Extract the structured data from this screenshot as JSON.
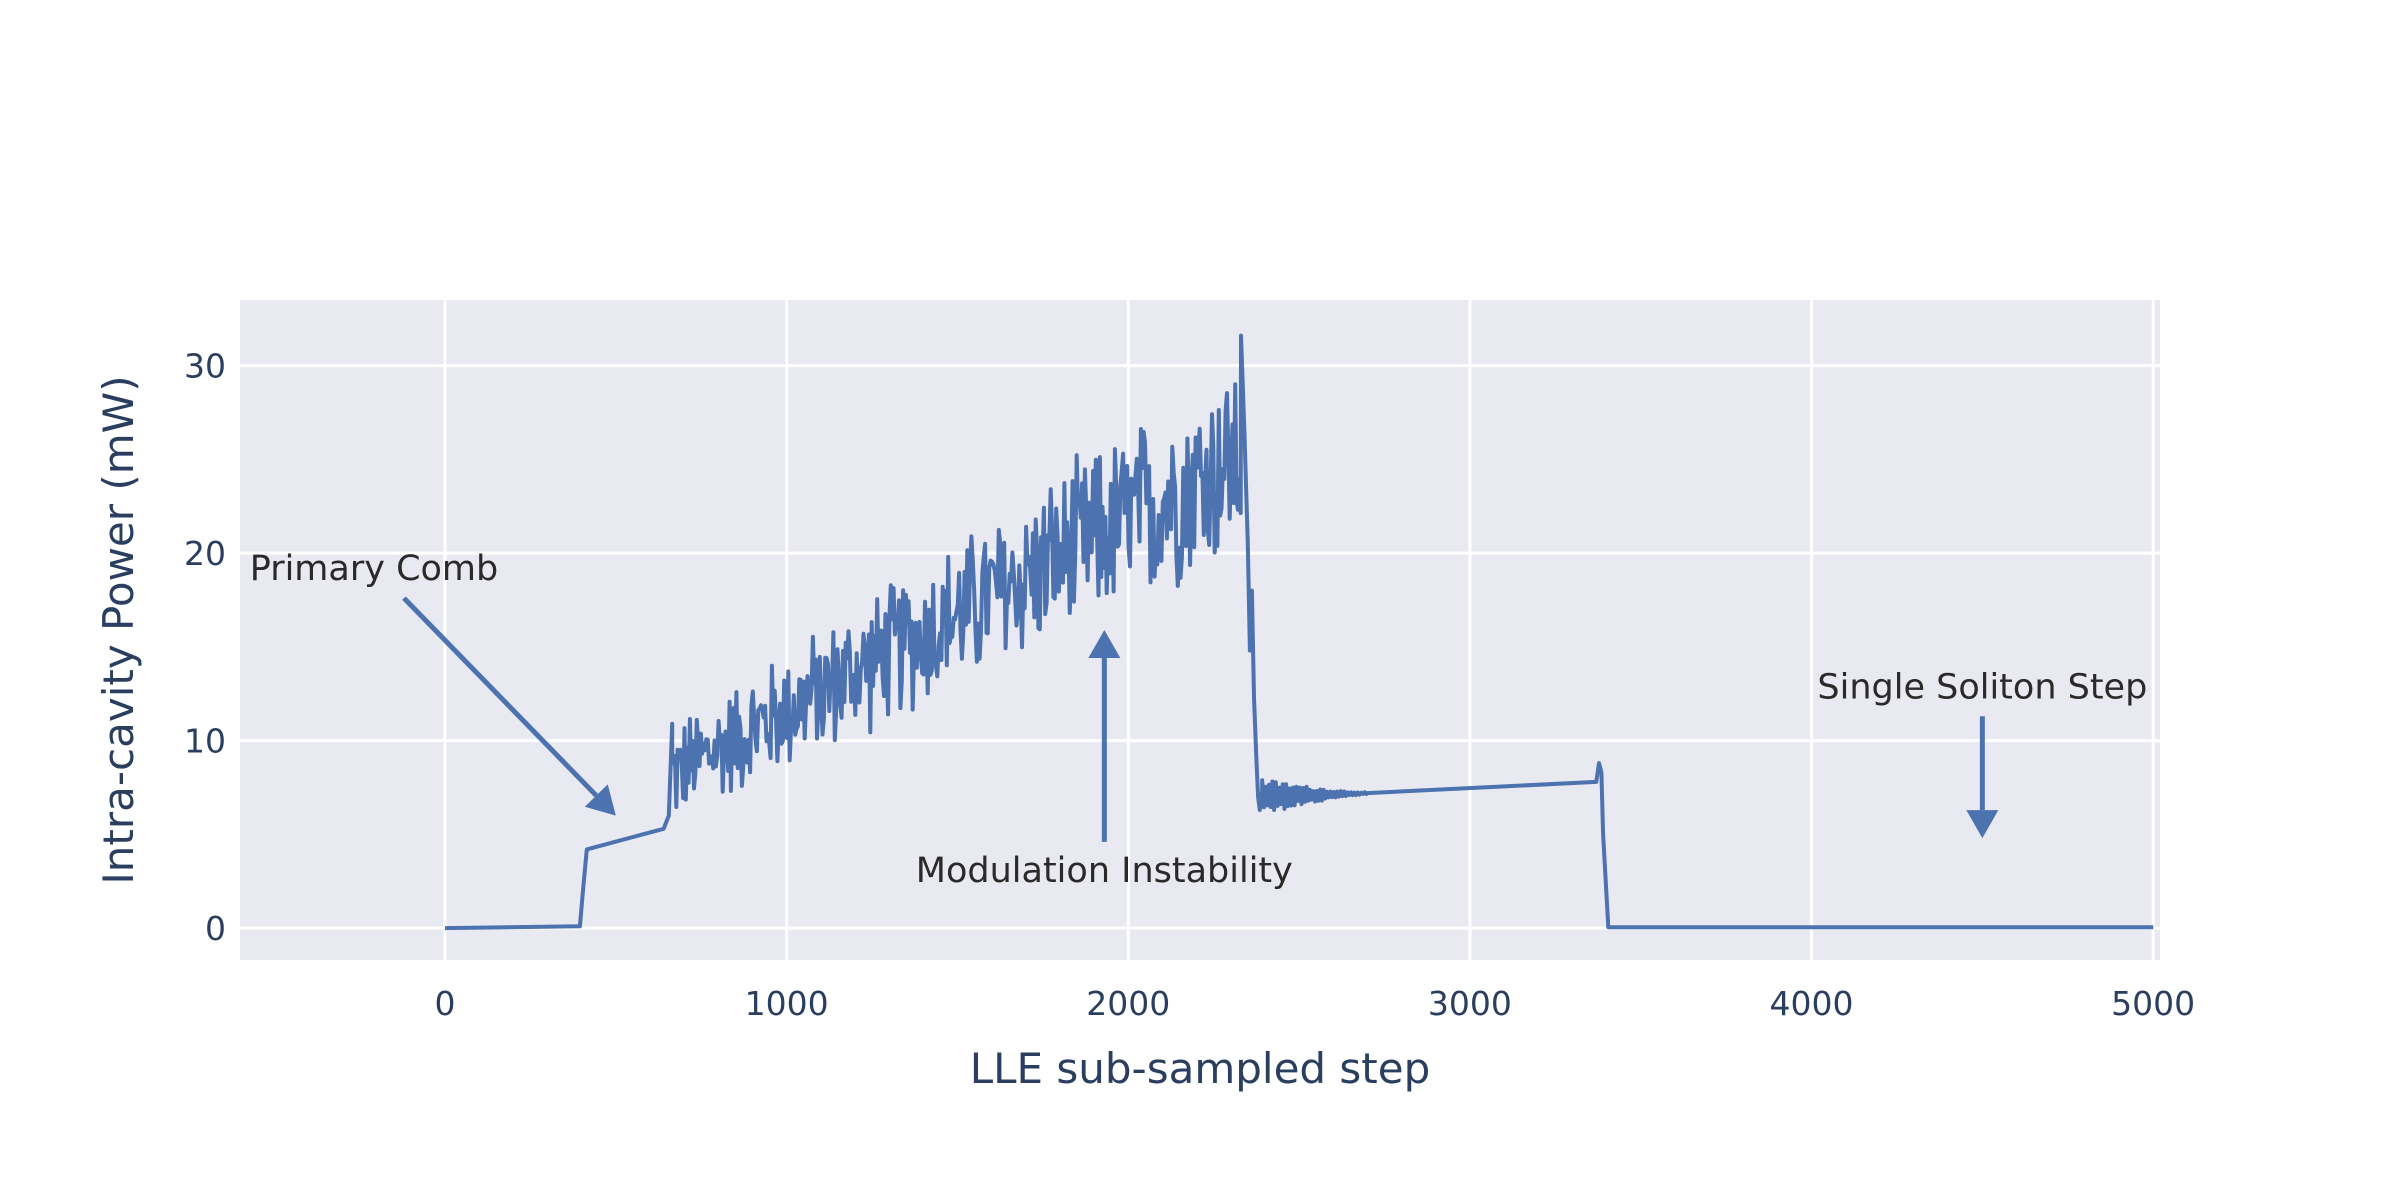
{
  "chart_data": {
    "type": "line",
    "xlabel": "LLE sub-sampled step",
    "ylabel": "Intra-cavity Power (mW)",
    "xlim": [
      -600,
      5020
    ],
    "ylim": [
      -1.7,
      33.5
    ],
    "xticks": [
      0,
      1000,
      2000,
      3000,
      4000,
      5000
    ],
    "yticks": [
      0,
      10,
      20,
      30
    ],
    "grid": true,
    "legend": "none",
    "colors": {
      "line": "#4c72b0",
      "plot_bg": "#e9e9f2",
      "grid": "#ffffff",
      "annotation": "#4c72b0"
    },
    "series": [
      {
        "color": "#4c72b0",
        "segments": [
          {
            "kind": "line",
            "x": [
              0,
              395,
              405,
              415,
              640,
              655,
              665
            ],
            "y": [
              0,
              0.1,
              2.2,
              4.2,
              5.3,
              6.0,
              10.9
            ]
          },
          {
            "kind": "noisy",
            "x_start": 665,
            "x_end": 2330,
            "y_start": 8.2,
            "y_end": 25.2,
            "amplitude_start": 2.5,
            "amplitude_end": 5.0
          },
          {
            "kind": "line",
            "x": [
              2330,
              2340,
              2350,
              2356,
              2362,
              2368,
              2375,
              2380,
              2385,
              2392
            ],
            "y": [
              31.6,
              26.5,
              20.5,
              14.8,
              18.0,
              12.3,
              9.0,
              7.0,
              6.3,
              7.3
            ]
          },
          {
            "kind": "decaying",
            "x_start": 2392,
            "x_end": 2700,
            "y_start": 7.0,
            "y_end": 7.2,
            "amplitude_start": 0.9,
            "amplitude_end": 0.05
          },
          {
            "kind": "line",
            "x": [
              2700,
              3370,
              3378,
              3385,
              3390,
              3405,
              5000
            ],
            "y": [
              7.2,
              7.8,
              8.8,
              8.3,
              5.0,
              0.05,
              0.05
            ]
          }
        ]
      }
    ],
    "annotations": [
      {
        "text": "Primary Comb",
        "tail_x": -120,
        "tail_y": 17.6,
        "head_x": 500,
        "head_y": 6.0
      },
      {
        "text": "Modulation Instability",
        "tail_x": 1930,
        "tail_y": 4.6,
        "head_x": 1930,
        "head_y": 15.9
      },
      {
        "text": "Single Soliton Step",
        "tail_x": 4500,
        "tail_y": 11.3,
        "head_x": 4500,
        "head_y": 4.8
      }
    ]
  }
}
